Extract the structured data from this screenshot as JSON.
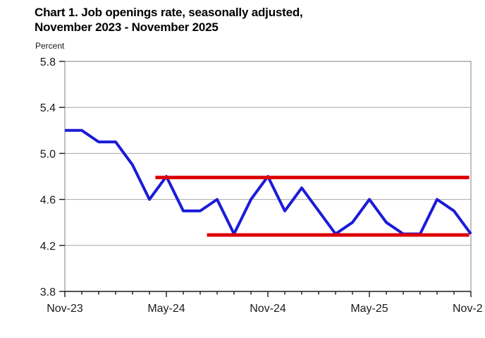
{
  "title": {
    "line1": "Chart 1. Job openings rate, seasonally adjusted,",
    "line2": "November 2023 - November 2025"
  },
  "axis_unit_label": "Percent",
  "colors": {
    "line_blue": "#1b1bd8",
    "reference_red": "#dd0000",
    "gridline": "#a8a8a8",
    "frame": "#808080",
    "axis": "#1a1a1a",
    "text": "#000000"
  },
  "chart_data": {
    "type": "line",
    "title": "Chart 1. Job openings rate, seasonally adjusted, November 2023 - November 2025",
    "ylabel": "Percent",
    "ylim": [
      3.8,
      5.8
    ],
    "y_ticks": [
      {
        "label": "5.8",
        "value": 5.8
      },
      {
        "label": "5.4",
        "value": 5.4
      },
      {
        "label": "5.0",
        "value": 5.0
      },
      {
        "label": "4.6",
        "value": 4.6
      },
      {
        "label": "4.2",
        "value": 4.2
      },
      {
        "label": "3.8",
        "value": 3.8
      }
    ],
    "x_range_months": 24,
    "x_ticks": [
      {
        "label": "Nov-23",
        "month": 0,
        "clipped": false
      },
      {
        "label": "May-24",
        "month": 6,
        "clipped": false
      },
      {
        "label": "Nov-24",
        "month": 12,
        "clipped": false
      },
      {
        "label": "May-25",
        "month": 18,
        "clipped": false
      },
      {
        "label": "Nov-2",
        "month": 24,
        "clipped": true
      }
    ],
    "grid": true,
    "legend": "none",
    "series": [
      {
        "name": "Job openings rate",
        "color": "#1b1bd8",
        "start_month": 0,
        "values": [
          5.2,
          5.2,
          5.1,
          5.1,
          4.9,
          4.6,
          4.8,
          4.5,
          4.5,
          4.6,
          4.3,
          4.6,
          4.8,
          4.5,
          4.7,
          4.5,
          4.3,
          4.4,
          4.6,
          4.4,
          4.3,
          4.3,
          4.6,
          4.5,
          4.3
        ]
      }
    ],
    "reference_lines": [
      {
        "name": "upper-range-reference-line",
        "value": 4.8,
        "start_month": 5.35,
        "end_month": 23.9,
        "color": "#dd0000"
      },
      {
        "name": "lower-range-reference-line",
        "value": 4.3,
        "start_month": 8.4,
        "end_month": 23.9,
        "color": "#dd0000"
      }
    ]
  }
}
